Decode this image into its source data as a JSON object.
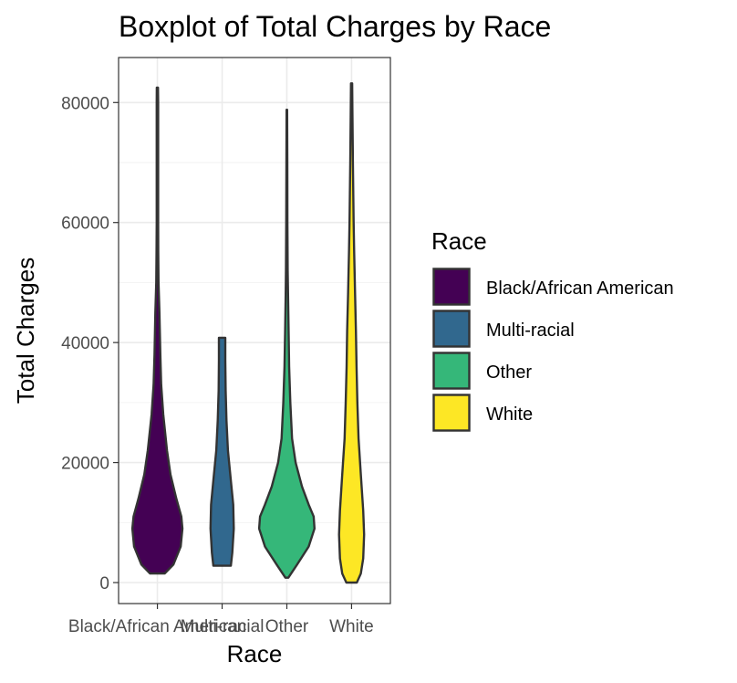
{
  "chart_data": {
    "type": "violin",
    "title": "Boxplot of Total Charges by Race",
    "xlabel": "Race",
    "ylabel": "Total Charges",
    "categories": [
      "Black/African American",
      "Multi-racial",
      "Other",
      "White"
    ],
    "ylim": [
      -3500,
      87500
    ],
    "yticks": [
      0,
      20000,
      40000,
      60000,
      80000
    ],
    "y_tick_labels": [
      "0",
      "20000",
      "40000",
      "60000",
      "80000"
    ],
    "grid": true,
    "legend": {
      "title": "Race",
      "placement": "right",
      "entries": [
        "Black/African American",
        "Multi-racial",
        "Other",
        "White"
      ]
    },
    "colors": [
      "#440154",
      "#31688e",
      "#35b779",
      "#fde725"
    ],
    "series": [
      {
        "category": "Black/African American",
        "min": 1500,
        "max": 82500,
        "density_profile": [
          [
            1500,
            0.25
          ],
          [
            3000,
            0.55
          ],
          [
            6000,
            0.8
          ],
          [
            9000,
            0.86
          ],
          [
            11000,
            0.82
          ],
          [
            14000,
            0.65
          ],
          [
            18000,
            0.45
          ],
          [
            22000,
            0.33
          ],
          [
            28000,
            0.2
          ],
          [
            33000,
            0.13
          ],
          [
            38000,
            0.1
          ],
          [
            45000,
            0.07
          ],
          [
            50000,
            0.04
          ],
          [
            55000,
            0.03
          ],
          [
            60000,
            0.025
          ],
          [
            70000,
            0.025
          ],
          [
            80000,
            0.025
          ],
          [
            82500,
            0.02
          ]
        ]
      },
      {
        "category": "Multi-racial",
        "min": 2800,
        "max": 40800,
        "density_profile": [
          [
            2800,
            0.3
          ],
          [
            5000,
            0.35
          ],
          [
            9000,
            0.4
          ],
          [
            13000,
            0.38
          ],
          [
            17000,
            0.3
          ],
          [
            22000,
            0.2
          ],
          [
            27000,
            0.15
          ],
          [
            32000,
            0.12
          ],
          [
            37000,
            0.11
          ],
          [
            40800,
            0.11
          ]
        ]
      },
      {
        "category": "Other",
        "min": 800,
        "max": 78800,
        "density_profile": [
          [
            800,
            0.05
          ],
          [
            3000,
            0.35
          ],
          [
            6000,
            0.75
          ],
          [
            9000,
            0.95
          ],
          [
            11000,
            0.92
          ],
          [
            13000,
            0.75
          ],
          [
            16000,
            0.52
          ],
          [
            20000,
            0.3
          ],
          [
            24000,
            0.18
          ],
          [
            30000,
            0.12
          ],
          [
            36000,
            0.08
          ],
          [
            42000,
            0.06
          ],
          [
            48000,
            0.04
          ],
          [
            52000,
            0.03
          ],
          [
            60000,
            0.02
          ],
          [
            70000,
            0.015
          ],
          [
            78800,
            0.01
          ]
        ]
      },
      {
        "category": "White",
        "min": 0,
        "max": 83200,
        "density_profile": [
          [
            0,
            0.18
          ],
          [
            1500,
            0.32
          ],
          [
            4000,
            0.4
          ],
          [
            8000,
            0.43
          ],
          [
            12000,
            0.4
          ],
          [
            18000,
            0.32
          ],
          [
            24000,
            0.24
          ],
          [
            30000,
            0.2
          ],
          [
            36000,
            0.17
          ],
          [
            42000,
            0.15
          ],
          [
            48000,
            0.12
          ],
          [
            55000,
            0.09
          ],
          [
            60000,
            0.07
          ],
          [
            70000,
            0.045
          ],
          [
            78000,
            0.03
          ],
          [
            83200,
            0.02
          ]
        ]
      }
    ]
  }
}
